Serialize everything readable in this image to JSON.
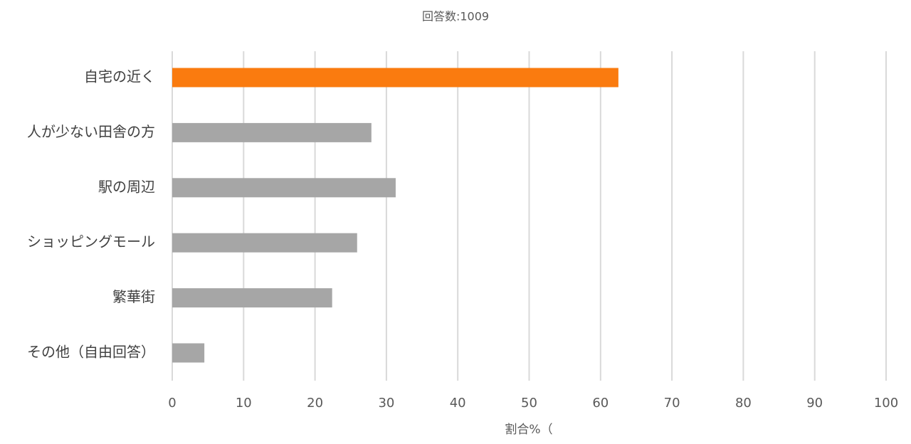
{
  "chart_data": {
    "type": "hbar",
    "title": "回答数:1009",
    "x_label": "割合%（",
    "categories": [
      "自宅の近く",
      "人が少ない田舎の方",
      "駅の周辺",
      "ショッピングモール",
      "繁華街",
      "その他（自由回答）"
    ],
    "values": [
      62.5,
      27.9,
      31.3,
      25.9,
      22.4,
      4.5
    ],
    "colors": [
      "#fa7b0f",
      "#a6a6a6",
      "#a6a6a6",
      "#a6a6a6",
      "#a6a6a6",
      "#a6a6a6"
    ],
    "xlim": [
      0,
      100
    ],
    "xticks": [
      0,
      10,
      20,
      30,
      40,
      50,
      60,
      70,
      80,
      90,
      100
    ],
    "grid": true
  }
}
